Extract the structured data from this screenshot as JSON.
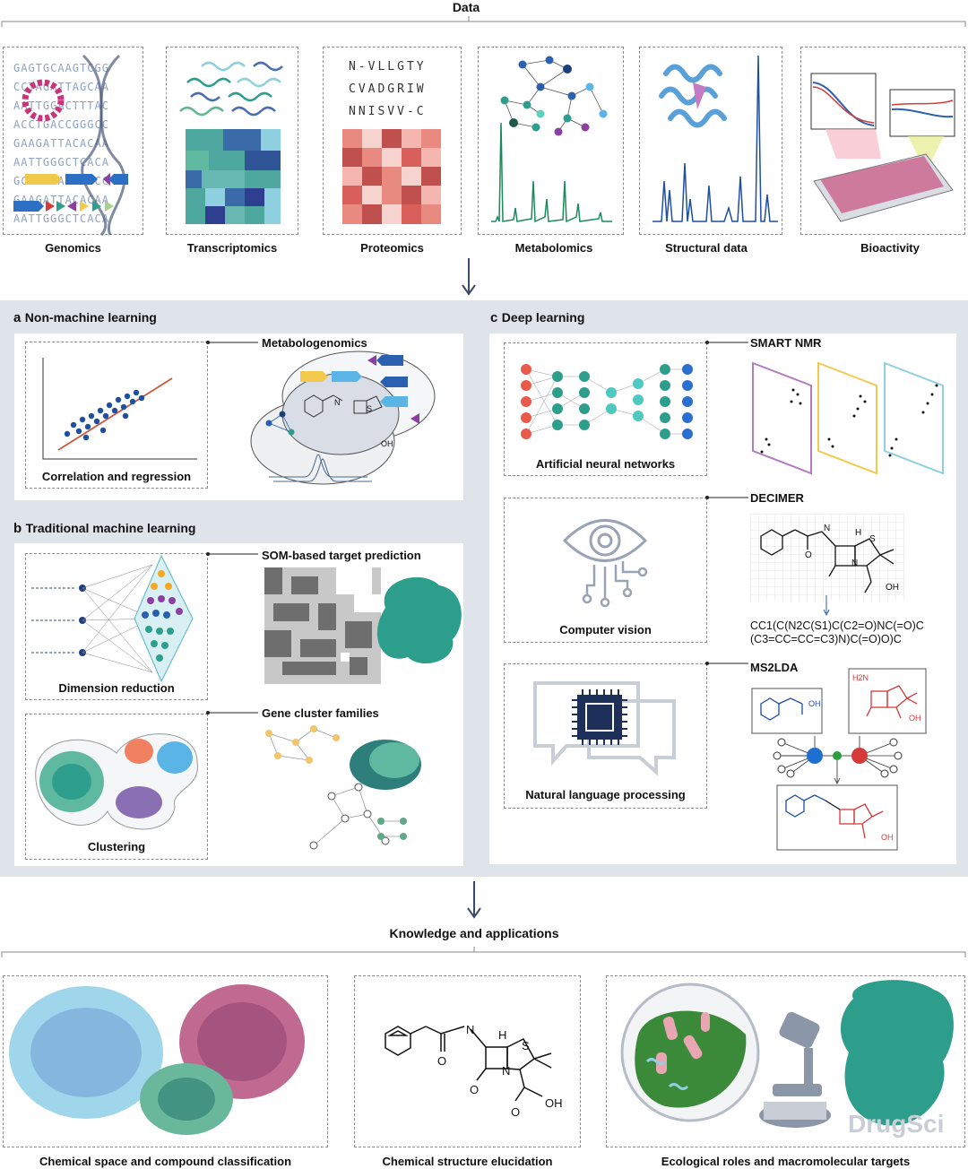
{
  "top_title": "Data",
  "data_panels": [
    "Genomics",
    "Transcriptomics",
    "Proteomics",
    "Metabolomics",
    "Structural data",
    "Bioactivity"
  ],
  "genomics_seqs": [
    "GAGTGCAAGTCGG",
    "CCTAGATTAGCAA",
    "AATTGGACTTTAC",
    "ACCTGACCGGGCC",
    "GAAGATTACACAA",
    "AATTGGGCTCACA",
    "GCGGTAAGTCGCC",
    "GAAGATTACACAA",
    "AATTGGGCTCACA"
  ],
  "protein_seqs": [
    "N-VLLGTY",
    "CVADGRIW",
    "NNISVV-C"
  ],
  "section_a": {
    "letter": "a",
    "title": "Non-machine learning"
  },
  "section_b": {
    "letter": "b",
    "title": "Traditional machine learning"
  },
  "section_c": {
    "letter": "c",
    "title": "Deep learning"
  },
  "metabologenomics": "Metabologenomics",
  "correlation": "Correlation and regression",
  "som": "SOM-based target prediction",
  "dimension_reduction": "Dimension reduction",
  "gene_cluster": "Gene cluster families",
  "clustering": "Clustering",
  "smart_nmr": "SMART NMR",
  "ann": "Artificial neural networks",
  "decimer": "DECIMER",
  "computer_vision": "Computer vision",
  "smiles_line1": "CC1(C(N2C(S1)C(C2=O)NC(=O)C",
  "smiles_line2": "(C3=CC=CC=C3)N)C(=O)O)C",
  "ms2lda": "MS2LDA",
  "nlp": "Natural language processing",
  "bottom_title": "Knowledge and applications",
  "bottom_panels": [
    "Chemical space and compound classification",
    "Chemical structure elucidation",
    "Ecological roles and macromolecular targets"
  ],
  "chem_labels": {
    "nh": "N",
    "h": "H",
    "s": "S",
    "n": "N",
    "o": "O",
    "oh": "OH",
    "h2n": "H2N"
  },
  "watermark": "DrugSci",
  "colors": {
    "panel_bg": "#dfe3ea",
    "arrow": "#3a4a6b",
    "teal": "#2e9e8c",
    "blue": "#2b5fb0",
    "red": "#d43a3a",
    "green_spec": "#1a8a5a"
  }
}
